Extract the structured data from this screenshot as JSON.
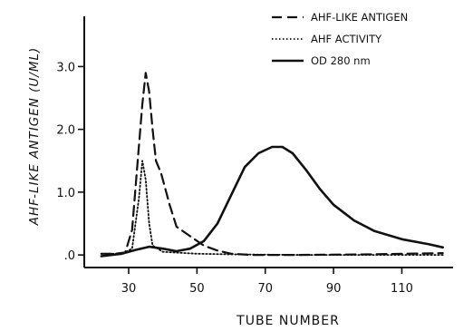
{
  "chart_data": {
    "type": "line",
    "title": "",
    "xlabel": "TUBE NUMBER",
    "ylabel": "AHF-LIKE ANTIGEN (U/ML)",
    "xlim": [
      17,
      125
    ],
    "ylim": [
      -0.2,
      3.8
    ],
    "x_ticks": [
      30,
      50,
      70,
      90,
      110
    ],
    "y_ticks": [
      {
        "value": 0,
        "label": ".0"
      },
      {
        "value": 1,
        "label": "1.0"
      },
      {
        "value": 2,
        "label": "2.0"
      },
      {
        "value": 3,
        "label": "3.0"
      }
    ],
    "grid": false,
    "legend": "top-right",
    "series": [
      {
        "name": "AHF-LIKE ANTIGEN",
        "style": "dashed",
        "color": "#111111",
        "points": [
          [
            22,
            0.02
          ],
          [
            26,
            0.02
          ],
          [
            29,
            0.04
          ],
          [
            31,
            0.4
          ],
          [
            32.5,
            1.4
          ],
          [
            34,
            2.4
          ],
          [
            35,
            2.9
          ],
          [
            36,
            2.6
          ],
          [
            37,
            2.0
          ],
          [
            38,
            1.5
          ],
          [
            39.5,
            1.3
          ],
          [
            42,
            0.8
          ],
          [
            44,
            0.45
          ],
          [
            48,
            0.3
          ],
          [
            52,
            0.15
          ],
          [
            56,
            0.07
          ],
          [
            60,
            0.02
          ],
          [
            66,
            0.0
          ],
          [
            80,
            0.0
          ],
          [
            100,
            0.01
          ],
          [
            122,
            0.03
          ]
        ]
      },
      {
        "name": "AHF ACTIVITY",
        "style": "dotted",
        "color": "#111111",
        "points": [
          [
            22,
            0.02
          ],
          [
            28,
            0.02
          ],
          [
            31,
            0.1
          ],
          [
            33,
            0.9
          ],
          [
            34,
            1.5
          ],
          [
            35,
            1.2
          ],
          [
            36,
            0.5
          ],
          [
            37,
            0.15
          ],
          [
            40,
            0.05
          ],
          [
            50,
            0.02
          ],
          [
            60,
            0.01
          ],
          [
            80,
            0.0
          ],
          [
            100,
            0.0
          ],
          [
            122,
            0.0
          ]
        ]
      },
      {
        "name": "OD 280 nm",
        "style": "solid",
        "color": "#111111",
        "points": [
          [
            22,
            -0.02
          ],
          [
            28,
            0.02
          ],
          [
            32,
            0.08
          ],
          [
            36,
            0.13
          ],
          [
            40,
            0.1
          ],
          [
            44,
            0.06
          ],
          [
            48,
            0.1
          ],
          [
            52,
            0.22
          ],
          [
            56,
            0.5
          ],
          [
            60,
            0.95
          ],
          [
            64,
            1.4
          ],
          [
            68,
            1.62
          ],
          [
            72,
            1.72
          ],
          [
            75,
            1.72
          ],
          [
            78,
            1.62
          ],
          [
            82,
            1.35
          ],
          [
            86,
            1.05
          ],
          [
            90,
            0.8
          ],
          [
            96,
            0.55
          ],
          [
            102,
            0.38
          ],
          [
            110,
            0.25
          ],
          [
            118,
            0.17
          ],
          [
            122,
            0.12
          ]
        ]
      }
    ]
  }
}
